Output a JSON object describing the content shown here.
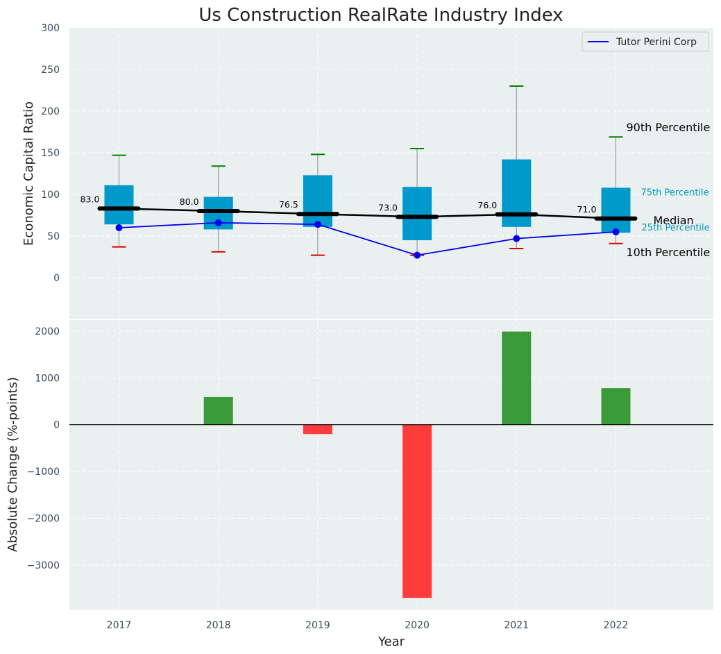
{
  "chart_data": [
    {
      "type": "box",
      "title": "Us Construction RealRate Industry Index",
      "xlabel": "",
      "ylabel": "Economic Capital Ratio",
      "ylim": [
        -50,
        300
      ],
      "yticks": [
        0,
        50,
        100,
        150,
        200,
        250,
        300
      ],
      "grid": true,
      "legend_position": "top-right",
      "categories": [
        "2017",
        "2018",
        "2019",
        "2020",
        "2021",
        "2022"
      ],
      "p10": [
        37,
        31,
        27,
        27,
        35,
        41
      ],
      "p25": [
        64,
        58,
        61,
        45,
        61,
        54
      ],
      "median": [
        83.0,
        80.0,
        76.5,
        73.0,
        76.0,
        71.0
      ],
      "p75": [
        111,
        97,
        123,
        109,
        142,
        108
      ],
      "p90": [
        147,
        134,
        148,
        155,
        230,
        169
      ],
      "median_labels": [
        "83.0",
        "80.0",
        "76.5",
        "73.0",
        "76.0",
        "71.0"
      ],
      "series": [
        {
          "name": "Tutor Perini Corp",
          "values": [
            60,
            66,
            64,
            27,
            47,
            55
          ],
          "color": "#0000ee"
        }
      ],
      "annotations": {
        "p90": "90th Percentile",
        "p75": "75th Percentile",
        "median": "Median",
        "p25": "25th Percentile",
        "p10": "10th Percentile"
      },
      "colors": {
        "box": "#0099cc",
        "median_line": "#000000",
        "p90_cap": "#008000",
        "p10_cap": "#dd0000",
        "whisker": "#8a8a8a",
        "background": "#eaeff0",
        "percentile_label": "#0099bb"
      }
    },
    {
      "type": "bar",
      "xlabel": "Year",
      "ylabel": "Absolute Change (%-points)",
      "categories": [
        "2017",
        "2018",
        "2019",
        "2020",
        "2021",
        "2022"
      ],
      "values": [
        0,
        590,
        -200,
        -3700,
        1990,
        780
      ],
      "ylim": [
        -3950,
        2250
      ],
      "yticks": [
        -3000,
        -2000,
        -1000,
        0,
        1000,
        2000
      ],
      "ytick_labels": [
        "−3000",
        "−2000",
        "−1000",
        "0",
        "1000",
        "2000"
      ],
      "grid": true,
      "colors": {
        "positive": "#3a9a3a",
        "negative": "#ff3b3b"
      }
    }
  ]
}
